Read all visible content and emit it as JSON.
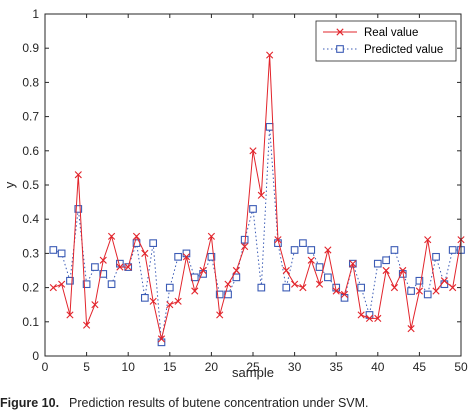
{
  "chart_data": {
    "type": "line",
    "xlabel": "sample",
    "ylabel": "y",
    "xlim": [
      0,
      50
    ],
    "ylim": [
      0,
      1
    ],
    "xticks": [
      0,
      5,
      10,
      15,
      20,
      25,
      30,
      35,
      40,
      45,
      50
    ],
    "yticks": [
      0,
      0.1,
      0.2,
      0.3,
      0.4,
      0.5,
      0.6,
      0.7,
      0.8,
      0.9,
      1
    ],
    "grid": false,
    "legend_position": "top-right",
    "series": [
      {
        "name": "Real value",
        "color": "#e2242b",
        "line_style": "solid",
        "marker": "x",
        "x": [
          1,
          2,
          3,
          4,
          5,
          6,
          7,
          8,
          9,
          10,
          11,
          12,
          13,
          14,
          15,
          16,
          17,
          18,
          19,
          20,
          21,
          22,
          23,
          24,
          25,
          26,
          27,
          28,
          29,
          30,
          31,
          32,
          33,
          34,
          35,
          36,
          37,
          38,
          39,
          40,
          41,
          42,
          43,
          44,
          45,
          46,
          47,
          48,
          49,
          50
        ],
        "values": [
          0.2,
          0.21,
          0.12,
          0.53,
          0.09,
          0.15,
          0.28,
          0.35,
          0.26,
          0.26,
          0.35,
          0.3,
          0.16,
          0.05,
          0.15,
          0.16,
          0.29,
          0.19,
          0.25,
          0.35,
          0.12,
          0.21,
          0.25,
          0.32,
          0.6,
          0.47,
          0.88,
          0.34,
          0.25,
          0.21,
          0.2,
          0.28,
          0.21,
          0.31,
          0.19,
          0.18,
          0.27,
          0.12,
          0.11,
          0.11,
          0.25,
          0.2,
          0.25,
          0.08,
          0.19,
          0.34,
          0.19,
          0.22,
          0.2,
          0.34
        ]
      },
      {
        "name": "Predicted value",
        "color": "#3b5bb5",
        "line_style": "dotted",
        "marker": "square",
        "x": [
          1,
          2,
          3,
          4,
          5,
          6,
          7,
          8,
          9,
          10,
          11,
          12,
          13,
          14,
          15,
          16,
          17,
          18,
          19,
          20,
          21,
          22,
          23,
          24,
          25,
          26,
          27,
          28,
          29,
          30,
          31,
          32,
          33,
          34,
          35,
          36,
          37,
          38,
          39,
          40,
          41,
          42,
          43,
          44,
          45,
          46,
          47,
          48,
          49,
          50
        ],
        "values": [
          0.31,
          0.3,
          0.22,
          0.43,
          0.21,
          0.26,
          0.24,
          0.21,
          0.27,
          0.26,
          0.33,
          0.17,
          0.33,
          0.04,
          0.2,
          0.29,
          0.3,
          0.23,
          0.24,
          0.29,
          0.18,
          0.18,
          0.23,
          0.34,
          0.43,
          0.2,
          0.67,
          0.33,
          0.2,
          0.31,
          0.33,
          0.31,
          0.26,
          0.23,
          0.2,
          0.17,
          0.27,
          0.2,
          0.12,
          0.27,
          0.28,
          0.31,
          0.24,
          0.19,
          0.22,
          0.18,
          0.29,
          0.21,
          0.31,
          0.31
        ]
      }
    ]
  },
  "caption": {
    "label": "Figure 10.",
    "text": "Prediction results of butene concentration under SVM."
  }
}
